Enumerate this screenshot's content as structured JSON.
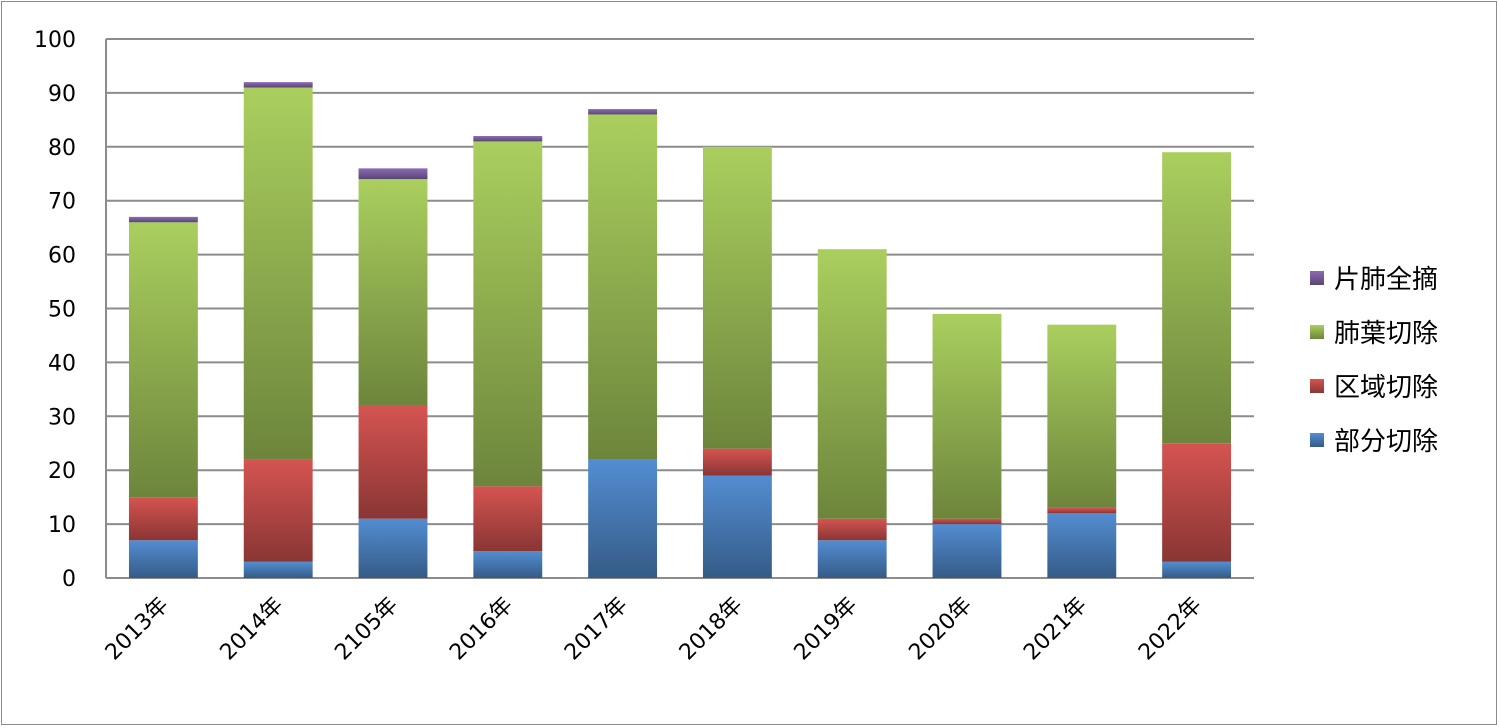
{
  "chart_data": {
    "type": "bar",
    "stacked": true,
    "title": "",
    "xlabel": "",
    "ylabel": "",
    "ylim": [
      0,
      100
    ],
    "yticks": [
      0,
      10,
      20,
      30,
      40,
      50,
      60,
      70,
      80,
      90,
      100
    ],
    "grid": true,
    "legend_position": "right",
    "categories": [
      "2013年",
      "2014年",
      "2105年",
      "2016年",
      "2017年",
      "2018年",
      "2019年",
      "2020年",
      "2021年",
      "2022年"
    ],
    "series": [
      {
        "name": "部分切除",
        "color": "#4a7ebb",
        "values": [
          7,
          3,
          11,
          5,
          22,
          19,
          7,
          10,
          12,
          3
        ]
      },
      {
        "name": "区域切除",
        "color": "#be4b48",
        "values": [
          8,
          19,
          21,
          12,
          0,
          5,
          4,
          1,
          1,
          22
        ]
      },
      {
        "name": "肺葉切除",
        "color": "#98b954",
        "values": [
          51,
          69,
          42,
          64,
          64,
          56,
          50,
          38,
          34,
          54
        ]
      },
      {
        "name": "片肺全摘",
        "color": "#7d60a0",
        "values": [
          1,
          1,
          2,
          1,
          1,
          0,
          0,
          0,
          0,
          0
        ]
      }
    ]
  }
}
